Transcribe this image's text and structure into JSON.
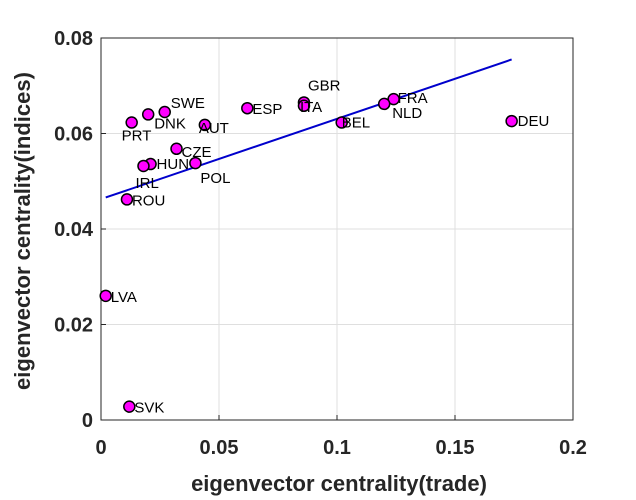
{
  "chart_data": {
    "type": "scatter",
    "title": "",
    "xlabel": "eigenvector centrality(trade)",
    "ylabel": "eigenvector centrality(indices)",
    "xlim": [
      0,
      0.2
    ],
    "ylim": [
      0,
      0.08
    ],
    "xticks": [
      0,
      0.05,
      0.1,
      0.15,
      0.2
    ],
    "xtick_labels": [
      "0",
      "0.05",
      "0.1",
      "0.15",
      "0.2"
    ],
    "yticks": [
      0,
      0.02,
      0.04,
      0.06,
      0.08
    ],
    "ytick_labels": [
      "0",
      "0.02",
      "0.04",
      "0.06",
      "0.08"
    ],
    "grid": true,
    "marker_color": "#ff00ff",
    "marker_edge": "#000000",
    "line_color": "#0000cc",
    "points": [
      {
        "label": "GBR",
        "x": 0.086,
        "y": 0.0665
      },
      {
        "label": "ITA",
        "x": 0.086,
        "y": 0.0658
      },
      {
        "label": "FRA",
        "x": 0.124,
        "y": 0.0672
      },
      {
        "label": "NLD",
        "x": 0.12,
        "y": 0.0662
      },
      {
        "label": "ESP",
        "x": 0.062,
        "y": 0.0653
      },
      {
        "label": "SWE",
        "x": 0.027,
        "y": 0.0645
      },
      {
        "label": "DNK",
        "x": 0.02,
        "y": 0.064
      },
      {
        "label": "PRT",
        "x": 0.013,
        "y": 0.0623
      },
      {
        "label": "AUT",
        "x": 0.044,
        "y": 0.0618
      },
      {
        "label": "BEL",
        "x": 0.102,
        "y": 0.0623
      },
      {
        "label": "DEU",
        "x": 0.174,
        "y": 0.0626
      },
      {
        "label": "CZE",
        "x": 0.032,
        "y": 0.0568
      },
      {
        "label": "POL",
        "x": 0.04,
        "y": 0.0538
      },
      {
        "label": "HUN",
        "x": 0.021,
        "y": 0.0536
      },
      {
        "label": "IRL",
        "x": 0.018,
        "y": 0.0532
      },
      {
        "label": "ROU",
        "x": 0.011,
        "y": 0.0462
      },
      {
        "label": "LVA",
        "x": 0.002,
        "y": 0.026
      },
      {
        "label": "SVK",
        "x": 0.012,
        "y": 0.0028
      }
    ],
    "fit_line": {
      "x": [
        0.002,
        0.174
      ],
      "y": [
        0.0466,
        0.0755
      ]
    }
  }
}
